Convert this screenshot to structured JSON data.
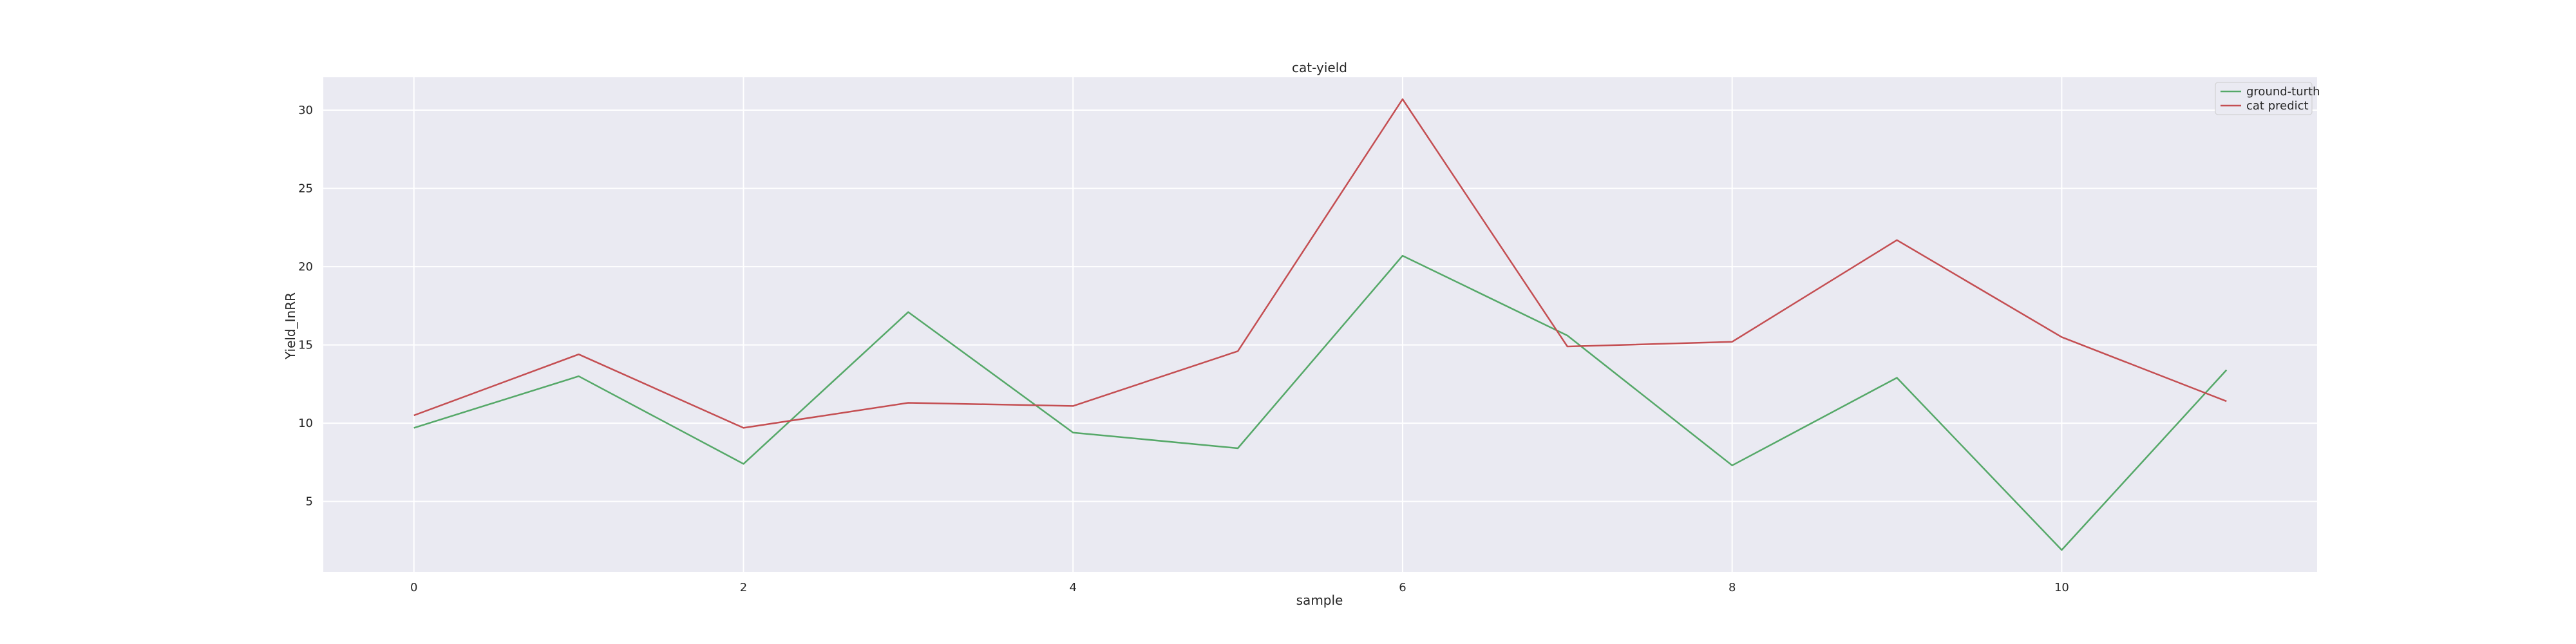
{
  "chart_data": {
    "type": "line",
    "title": "cat-yield",
    "xlabel": "sample",
    "ylabel": "Yield_InRR",
    "x": [
      0,
      1,
      2,
      3,
      4,
      5,
      6,
      7,
      8,
      9,
      10,
      11
    ],
    "xlim": [
      -0.55,
      11.55
    ],
    "ylim": [
      0.5,
      32.1
    ],
    "xticks": [
      0,
      2,
      4,
      6,
      8,
      10
    ],
    "yticks": [
      5,
      10,
      15,
      20,
      25,
      30
    ],
    "grid": true,
    "legend": "top-right",
    "background": "#eaeaf2",
    "series": [
      {
        "name": "ground-turth",
        "color": "#55a868",
        "values": [
          9.7,
          13.0,
          7.4,
          17.1,
          9.4,
          8.4,
          20.7,
          15.6,
          7.3,
          12.9,
          1.9,
          13.4
        ]
      },
      {
        "name": "cat predict",
        "color": "#c44e52",
        "values": [
          10.5,
          14.4,
          9.7,
          11.3,
          11.1,
          14.6,
          30.7,
          14.9,
          15.2,
          21.7,
          15.5,
          11.4
        ]
      }
    ]
  }
}
